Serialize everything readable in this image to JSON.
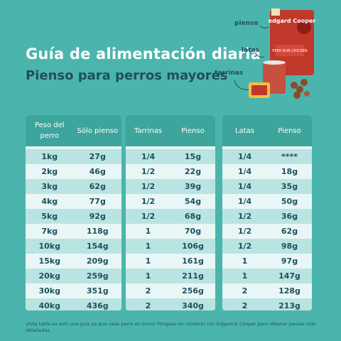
{
  "title": "Guía de alimentación diaria",
  "subtitle": "Pienso para perros mayores",
  "product_labels": {
    "pienso": "pienso",
    "latas": "latas",
    "tarrinas": "tarrinas"
  },
  "brand": {
    "name": "edgard Cooper",
    "product": "FREE-RUN CHICKEN"
  },
  "tables": [
    {
      "headers": [
        "Peso del perro",
        "Sólo pienso"
      ],
      "rows": [
        [
          "1kg",
          "27g"
        ],
        [
          "2kg",
          "46g"
        ],
        [
          "3kg",
          "62g"
        ],
        [
          "4kg",
          "77g"
        ],
        [
          "5kg",
          "92g"
        ],
        [
          "7kg",
          "118g"
        ],
        [
          "10kg",
          "154g"
        ],
        [
          "15kg",
          "209g"
        ],
        [
          "20kg",
          "259g"
        ],
        [
          "30kg",
          "351g"
        ],
        [
          "40kg",
          "436g"
        ]
      ]
    },
    {
      "headers": [
        "Tarrinas",
        "Pienso"
      ],
      "rows": [
        [
          "1/4",
          "15g"
        ],
        [
          "1/2",
          "22g"
        ],
        [
          "1/2",
          "39g"
        ],
        [
          "1/2",
          "54g"
        ],
        [
          "1/2",
          "68g"
        ],
        [
          "1",
          "70g"
        ],
        [
          "1",
          "106g"
        ],
        [
          "1",
          "161g"
        ],
        [
          "1",
          "211g"
        ],
        [
          "2",
          "256g"
        ],
        [
          "2",
          "340g"
        ]
      ]
    },
    {
      "headers": [
        "Latas",
        "Pienso"
      ],
      "rows": [
        [
          "1/4",
          "****"
        ],
        [
          "1/4",
          "18g"
        ],
        [
          "1/4",
          "35g"
        ],
        [
          "1/4",
          "50g"
        ],
        [
          "1/2",
          "36g"
        ],
        [
          "1/2",
          "62g"
        ],
        [
          "1/2",
          "98g"
        ],
        [
          "1",
          "97g"
        ],
        [
          "1",
          "147g"
        ],
        [
          "2",
          "128g"
        ],
        [
          "2",
          "213g"
        ]
      ]
    }
  ],
  "footnote": "¡Esta tabla es solo una guía ya que cada perro es único! Póngase en contacto con Edgard & Cooper para obtener pautas más detalladas.",
  "colors": {
    "background": "#4bb5ad",
    "header": "#3ea59d",
    "text_dark": "#1f4f5e",
    "bag_red": "#c0392b"
  }
}
